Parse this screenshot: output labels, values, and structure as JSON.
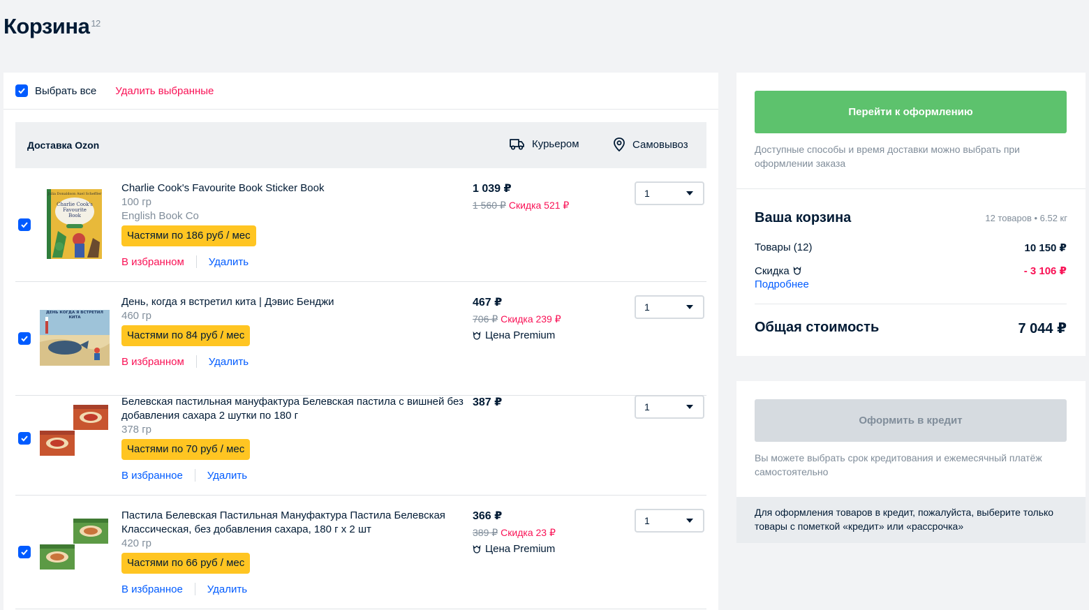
{
  "page": {
    "title": "Корзина",
    "count": "12"
  },
  "select_bar": {
    "select_all": "Выбрать все",
    "delete_selected": "Удалить выбранные"
  },
  "delivery": {
    "title": "Доставка Ozon",
    "courier": "Курьером",
    "pickup": "Самовывоз"
  },
  "items": [
    {
      "name": "Charlie Cook's Favourite Book Sticker Book",
      "weight": "100 гр",
      "brand": "English Book Co",
      "installment": "Частями по 186 руб / мес",
      "price": "1 039 ₽",
      "old_price": "1 560 ₽",
      "discount": "Скидка 521 ₽",
      "premium": "",
      "fav": "В избранном",
      "delete": "Удалить",
      "qty": "1"
    },
    {
      "name": "День, когда я встретил кита | Дэвис Бенджи",
      "weight": "460 гр",
      "brand": "",
      "installment": "Частями по 84 руб / мес",
      "price": "467 ₽",
      "old_price": "706 ₽",
      "discount": "Скидка 239 ₽",
      "premium": "Цена Premium",
      "fav": "В избранном",
      "delete": "Удалить",
      "qty": "1"
    },
    {
      "name": "Белевская пастильная мануфактура Белевская пастила с вишней без добавления сахара 2 шутки по 180 г",
      "weight": "378 гр",
      "brand": "",
      "installment": "Частями по 70 руб / мес",
      "price": "387 ₽",
      "old_price": "",
      "discount": "",
      "premium": "",
      "fav": "В избранное",
      "delete": "Удалить",
      "qty": "1"
    },
    {
      "name": "Пастила Белевская Пастильная Мануфактура Пастила Белевская Классическая, без добавления сахара, 180 г х 2 шт",
      "weight": "420 гр",
      "brand": "",
      "installment": "Частями по 66 руб / мес",
      "price": "366 ₽",
      "old_price": "389 ₽",
      "discount": "Скидка 23 ₽",
      "premium": "Цена Premium",
      "fav": "В избранное",
      "delete": "Удалить",
      "qty": "1"
    }
  ],
  "thumbs": {
    "book1_title": "Charlie Cook's Favourite Book",
    "book2_title": "ДЕНЬ КОГДА Я ВСТРЕТИЛ КИТА"
  },
  "summary": {
    "checkout_button": "Перейти к оформлению",
    "checkout_note": "Доступные способы и время доставки можно выбрать при оформлении заказа",
    "title": "Ваша корзина",
    "meta": "12 товаров • 6.52 кг",
    "goods_label": "Товары (12)",
    "goods_value": "10 150 ₽",
    "discount_label": "Скидка",
    "discount_value": "- 3 106 ₽",
    "more": "Подробнее",
    "total_label": "Общая стоимость",
    "total_value": "7 044 ₽"
  },
  "credit": {
    "button": "Оформить в кредит",
    "note": "Вы можете выбрать срок кредитования и ежемесячный платёж самостоятельно",
    "warning": "Для оформления товаров в кредит, пожалуйста, выберите только товары с пометкой «кредит» или «рассрочка»"
  },
  "colors": {
    "accent": "#005bff",
    "checkout": "#5dc26d",
    "red": "#f91155",
    "installment": "#ffc522"
  }
}
